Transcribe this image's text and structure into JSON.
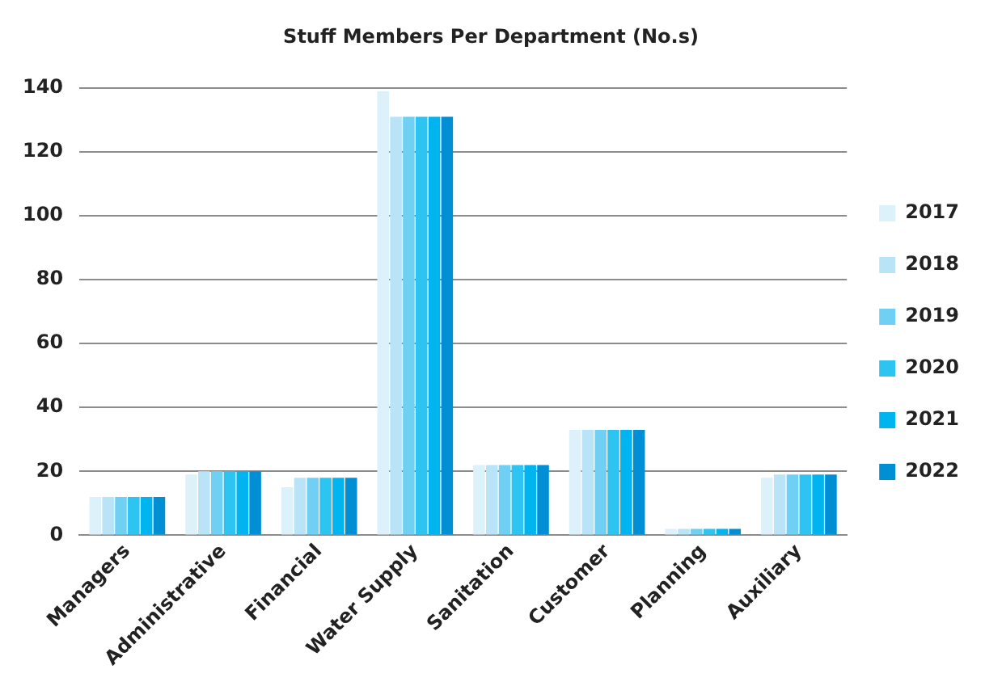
{
  "chart_data": {
    "type": "bar",
    "title": "Stuff Members Per Department (No.s)",
    "categories": [
      "Managers",
      "Administrative",
      "Financial",
      "Water Supply",
      "Sanitation",
      "Customer",
      "Planning",
      "Auxiliary"
    ],
    "series": [
      {
        "name": "2017",
        "color": "#ddf1fa",
        "values": [
          12,
          19,
          15,
          139,
          22,
          33,
          2,
          18
        ]
      },
      {
        "name": "2018",
        "color": "#b9e4f8",
        "values": [
          12,
          20,
          18,
          131,
          22,
          33,
          2,
          19
        ]
      },
      {
        "name": "2019",
        "color": "#70d0f4",
        "values": [
          12,
          20,
          18,
          131,
          22,
          33,
          2,
          19
        ]
      },
      {
        "name": "2020",
        "color": "#2ec4f2",
        "values": [
          12,
          20,
          18,
          131,
          22,
          33,
          2,
          19
        ]
      },
      {
        "name": "2021",
        "color": "#00b4ef",
        "values": [
          12,
          20,
          18,
          131,
          22,
          33,
          2,
          19
        ]
      },
      {
        "name": "2022",
        "color": "#008fd4",
        "values": [
          12,
          20,
          18,
          131,
          22,
          33,
          2,
          19
        ]
      }
    ],
    "ylim": [
      0,
      140
    ],
    "yticks": [
      0,
      20,
      40,
      60,
      80,
      100,
      120,
      140
    ],
    "grid": "y",
    "legend": "right"
  }
}
